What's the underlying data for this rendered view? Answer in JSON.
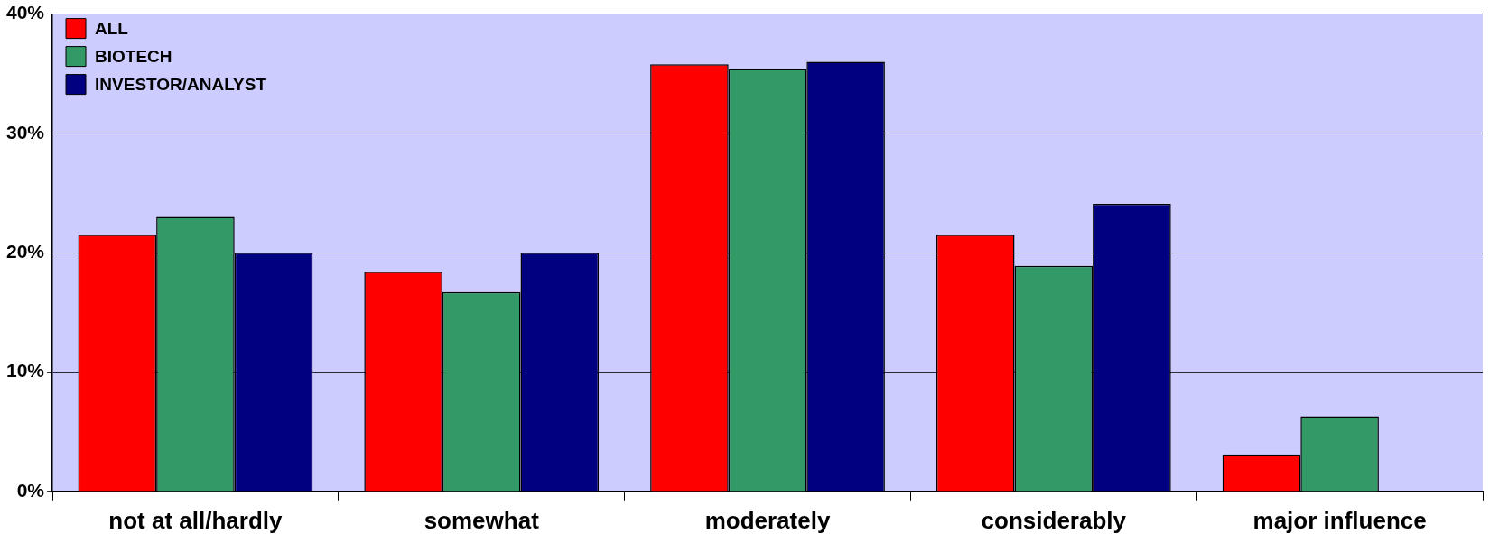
{
  "chart_data": {
    "type": "bar",
    "categories": [
      "not at all/hardly",
      "somewhat",
      "moderately",
      "considerably",
      "major influence"
    ],
    "series": [
      {
        "name": "ALL",
        "color": "#ff0000",
        "values": [
          21.5,
          18.4,
          35.8,
          21.5,
          3.1
        ]
      },
      {
        "name": "BIOTECH",
        "color": "#339966",
        "values": [
          23.0,
          16.7,
          35.4,
          18.9,
          6.3
        ]
      },
      {
        "name": "INVESTOR/ANALYST",
        "color": "#000080",
        "values": [
          20.0,
          20.0,
          36.0,
          24.1,
          null
        ]
      }
    ],
    "ylim": [
      0,
      40
    ],
    "yticks": [
      {
        "value": 0,
        "label": "0%"
      },
      {
        "value": 10,
        "label": "10%"
      },
      {
        "value": 20,
        "label": "20%"
      },
      {
        "value": 30,
        "label": "30%"
      },
      {
        "value": 40,
        "label": "40%"
      }
    ],
    "grid": "y",
    "legend": "top left"
  }
}
